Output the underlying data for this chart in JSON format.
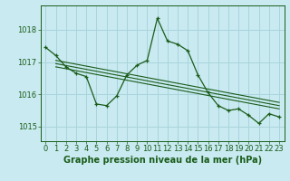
{
  "title": "Graphe pression niveau de la mer (hPa)",
  "bg_color": "#c8eaf0",
  "grid_color": "#aad4dc",
  "line_color": "#1a5c1a",
  "x_ticks": [
    0,
    1,
    2,
    3,
    4,
    5,
    6,
    7,
    8,
    9,
    10,
    11,
    12,
    13,
    14,
    15,
    16,
    17,
    18,
    19,
    20,
    21,
    22,
    23
  ],
  "y_ticks": [
    1015,
    1016,
    1017,
    1018
  ],
  "ylim": [
    1014.55,
    1018.75
  ],
  "xlim": [
    -0.5,
    23.5
  ],
  "main_series": [
    1017.45,
    1017.2,
    1016.85,
    1016.65,
    1016.55,
    1015.7,
    1015.65,
    1015.95,
    1016.6,
    1016.9,
    1017.05,
    1018.35,
    1017.65,
    1017.55,
    1017.35,
    1016.6,
    1016.05,
    1015.65,
    1015.5,
    1015.55,
    1015.35,
    1015.1,
    1015.4,
    1015.3
  ],
  "trend_lines": [
    {
      "x": [
        1,
        23
      ],
      "y": [
        1017.05,
        1015.75
      ]
    },
    {
      "x": [
        1,
        23
      ],
      "y": [
        1016.95,
        1015.65
      ]
    },
    {
      "x": [
        1,
        23
      ],
      "y": [
        1016.85,
        1015.55
      ]
    }
  ],
  "tick_fontsize": 6.0,
  "xlabel_fontsize": 7.0
}
